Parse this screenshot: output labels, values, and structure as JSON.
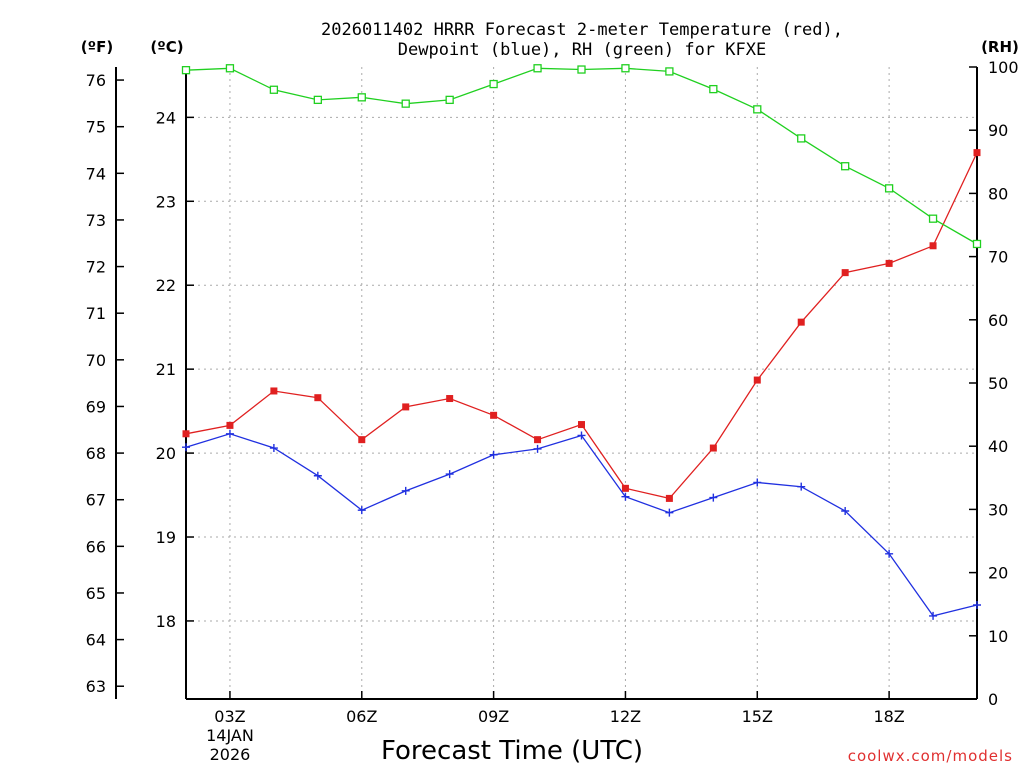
{
  "chart_data": {
    "type": "line",
    "title_line1": "2026011402 HRRR Forecast 2-meter Temperature (red),",
    "title_line2": "Dewpoint (blue), RH (green) for KFXE",
    "xlabel": "Forecast Time (UTC)",
    "credit": "coolwx.com/models",
    "unit_labels": {
      "fahrenheit": "(ºF)",
      "celsius": "(ºC)",
      "rh": "(RH)"
    },
    "x_hours": [
      2,
      3,
      4,
      5,
      6,
      7,
      8,
      9,
      10,
      11,
      12,
      13,
      14,
      15,
      16,
      17,
      18,
      19,
      20
    ],
    "x_ticks": [
      {
        "hour": 3,
        "label": "03Z",
        "sub1": "14JAN",
        "sub2": "2026"
      },
      {
        "hour": 6,
        "label": "06Z"
      },
      {
        "hour": 9,
        "label": "09Z"
      },
      {
        "hour": 12,
        "label": "12Z"
      },
      {
        "hour": 15,
        "label": "15Z"
      },
      {
        "hour": 18,
        "label": "18Z"
      }
    ],
    "xlim": [
      2,
      20
    ],
    "celsius_axis": {
      "ylim": [
        17.07,
        24.6
      ],
      "ticks": [
        18,
        19,
        20,
        21,
        22,
        23,
        24
      ]
    },
    "fahrenheit_axis": {
      "ticks": [
        63,
        64,
        65,
        66,
        67,
        68,
        69,
        70,
        71,
        72,
        73,
        74,
        75,
        76
      ]
    },
    "rh_axis": {
      "ylim": [
        0,
        100
      ],
      "ticks": [
        0,
        10,
        20,
        30,
        40,
        50,
        60,
        70,
        80,
        90,
        100
      ]
    },
    "series": [
      {
        "name": "Temperature",
        "color": "#e02020",
        "marker": "filled-square",
        "axis": "celsius",
        "values": [
          20.23,
          20.33,
          20.74,
          20.66,
          20.16,
          20.55,
          20.65,
          20.45,
          20.16,
          20.34,
          19.58,
          19.46,
          20.06,
          20.87,
          21.56,
          22.15,
          22.26,
          22.47,
          23.58
        ]
      },
      {
        "name": "Dewpoint",
        "color": "#2030e0",
        "marker": "plus",
        "axis": "celsius",
        "values": [
          20.07,
          20.23,
          20.06,
          19.73,
          19.32,
          19.55,
          19.75,
          19.98,
          20.05,
          20.21,
          19.48,
          19.29,
          19.47,
          19.65,
          19.6,
          19.31,
          18.8,
          18.06,
          18.19
        ]
      },
      {
        "name": "RH",
        "color": "#20d020",
        "marker": "open-square",
        "axis": "rh",
        "values": [
          99.5,
          99.8,
          96.4,
          94.8,
          95.2,
          94.2,
          94.8,
          97.3,
          99.8,
          99.6,
          99.8,
          99.3,
          96.5,
          93.3,
          88.7,
          84.3,
          80.8,
          76.0,
          72.0
        ]
      }
    ]
  }
}
